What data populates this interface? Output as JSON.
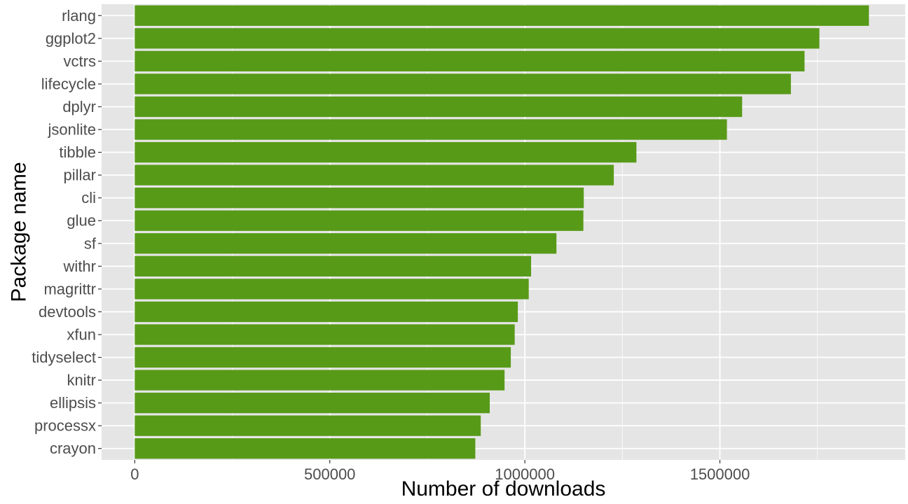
{
  "chart_data": {
    "type": "bar",
    "orientation": "horizontal",
    "title": "",
    "xlabel": "Number of downloads",
    "ylabel": "Package name",
    "xlim": [
      -85000,
      1975000
    ],
    "xticks": [
      0,
      500000,
      1000000,
      1500000
    ],
    "xtick_labels": [
      "0",
      "500000",
      "1000000",
      "1500000"
    ],
    "grid": true,
    "legend": "none",
    "colors": {
      "bar": "#579a18",
      "panel": "#e5e5e5",
      "grid": "#ffffff",
      "tick_text": "#4d4d4d",
      "tick_mark": "#333333"
    },
    "categories": [
      "rlang",
      "ggplot2",
      "vctrs",
      "lifecycle",
      "dplyr",
      "jsonlite",
      "tibble",
      "pillar",
      "cli",
      "glue",
      "sf",
      "withr",
      "magrittr",
      "devtools",
      "xfun",
      "tidyselect",
      "knitr",
      "ellipsis",
      "processx",
      "crayon"
    ],
    "values": [
      1882000,
      1755000,
      1717000,
      1682000,
      1557000,
      1518000,
      1286000,
      1228000,
      1151000,
      1150000,
      1081000,
      1016000,
      1010000,
      982000,
      974000,
      964000,
      948000,
      910000,
      887000,
      873000
    ]
  }
}
